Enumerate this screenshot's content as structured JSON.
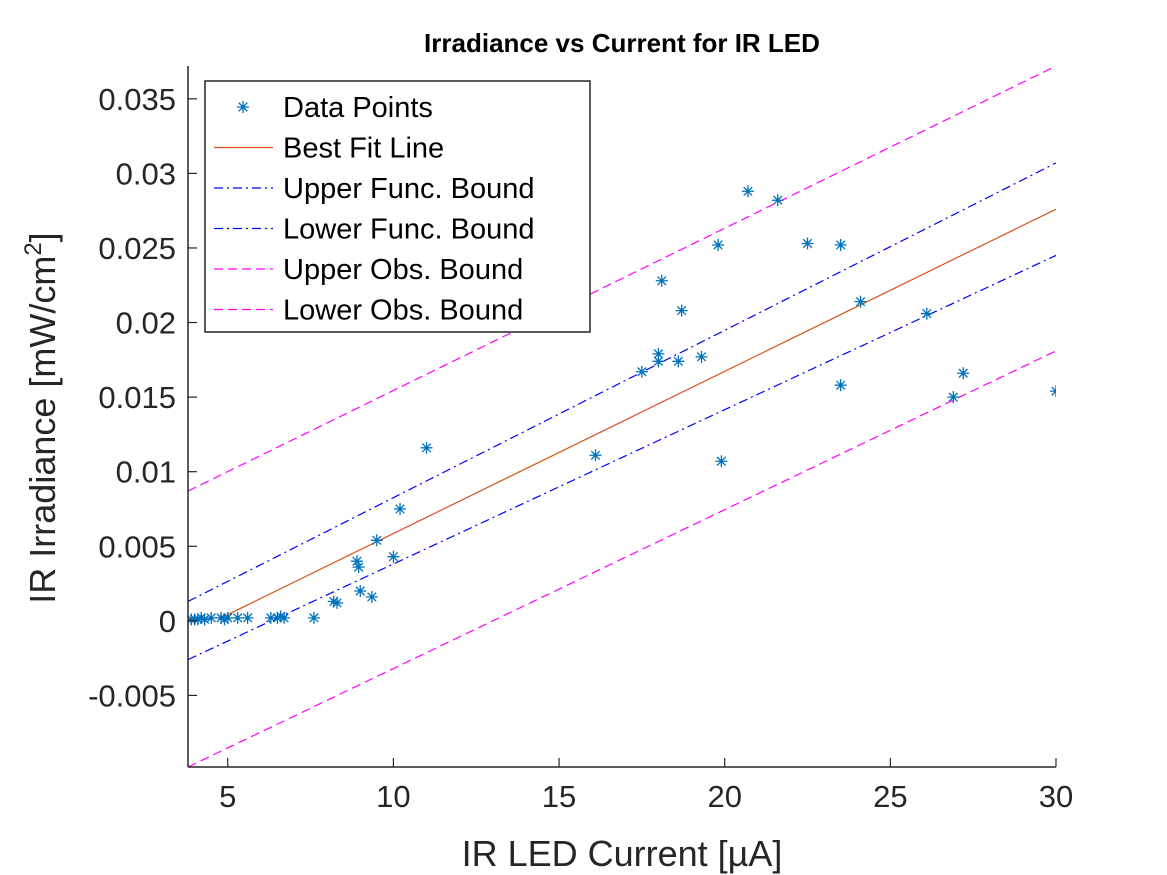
{
  "chart_data": {
    "type": "scatter",
    "title": "Irradiance vs Current for IR LED",
    "xlabel": "IR LED Current [µA]",
    "ylabel": "IR Irradiance [mW/cm",
    "ylabel_sup": "2",
    "ylabel_end": "]",
    "xlim": [
      3.8,
      30
    ],
    "ylim": [
      -0.0098,
      0.0372
    ],
    "xticks": [
      5,
      10,
      15,
      20,
      25,
      30
    ],
    "xtick_labels": [
      "5",
      "10",
      "15",
      "20",
      "25",
      "30"
    ],
    "yticks": [
      -0.005,
      0,
      0.005,
      0.01,
      0.015,
      0.02,
      0.025,
      0.03,
      0.035
    ],
    "ytick_labels": [
      "-0.005",
      "0",
      "0.005",
      "0.01",
      "0.015",
      "0.02",
      "0.025",
      "0.03",
      "0.035"
    ],
    "grid": false,
    "legend_position": "top-left",
    "series": [
      {
        "name": "Data Points",
        "kind": "scatter",
        "marker": "asterisk",
        "color": "#0072BD",
        "points": [
          [
            3.9,
            0.0001
          ],
          [
            4.0,
            0.0001
          ],
          [
            4.1,
            0.0001
          ],
          [
            4.2,
            0.0002
          ],
          [
            4.3,
            0.0001
          ],
          [
            4.5,
            0.0002
          ],
          [
            4.8,
            0.0002
          ],
          [
            4.9,
            0.0001
          ],
          [
            5.0,
            0.0002
          ],
          [
            5.3,
            0.0002
          ],
          [
            5.6,
            0.0002
          ],
          [
            6.3,
            0.0002
          ],
          [
            6.5,
            0.0002
          ],
          [
            6.6,
            0.0003
          ],
          [
            6.7,
            0.0002
          ],
          [
            7.6,
            0.0002
          ],
          [
            8.2,
            0.0013
          ],
          [
            8.3,
            0.0012
          ],
          [
            8.9,
            0.004
          ],
          [
            8.95,
            0.0036
          ],
          [
            9.0,
            0.002
          ],
          [
            9.35,
            0.0016
          ],
          [
            9.5,
            0.0054
          ],
          [
            10.0,
            0.0043
          ],
          [
            10.2,
            0.0075
          ],
          [
            11.0,
            0.0116
          ],
          [
            16.1,
            0.0111
          ],
          [
            17.5,
            0.0167
          ],
          [
            18.0,
            0.0179
          ],
          [
            18.0,
            0.0174
          ],
          [
            18.1,
            0.0228
          ],
          [
            18.6,
            0.0174
          ],
          [
            18.7,
            0.0208
          ],
          [
            19.3,
            0.0177
          ],
          [
            19.8,
            0.0252
          ],
          [
            19.9,
            0.0107
          ],
          [
            20.7,
            0.0288
          ],
          [
            21.6,
            0.0282
          ],
          [
            22.5,
            0.0253
          ],
          [
            23.5,
            0.0252
          ],
          [
            23.5,
            0.0158
          ],
          [
            24.1,
            0.0214
          ],
          [
            26.1,
            0.0206
          ],
          [
            26.9,
            0.015
          ],
          [
            27.2,
            0.0166
          ],
          [
            30.0,
            0.0154
          ]
        ]
      },
      {
        "name": "Best Fit Line",
        "kind": "line",
        "color": "#D95319",
        "dash": "none",
        "x": [
          4.8,
          30
        ],
        "y": [
          0.0002,
          0.0276
        ]
      },
      {
        "name": "Upper Func. Bound",
        "kind": "line",
        "color": "#0000FF",
        "dash": "dashdot",
        "x": [
          3.8,
          30
        ],
        "y": [
          0.0013,
          0.0307
        ]
      },
      {
        "name": "Lower Func. Bound",
        "kind": "line",
        "color": "#0000FF",
        "dash": "dashdot",
        "x": [
          3.8,
          30
        ],
        "y": [
          -0.0026,
          0.0245
        ]
      },
      {
        "name": "Upper Obs. Bound",
        "kind": "line",
        "color": "#FF00FF",
        "dash": "dashed",
        "x": [
          3.8,
          30
        ],
        "y": [
          0.0087,
          0.0372
        ]
      },
      {
        "name": "Lower Obs. Bound",
        "kind": "line",
        "color": "#FF00FF",
        "dash": "dashed",
        "x": [
          3.8,
          30
        ],
        "y": [
          -0.0098,
          0.0181
        ]
      }
    ]
  }
}
